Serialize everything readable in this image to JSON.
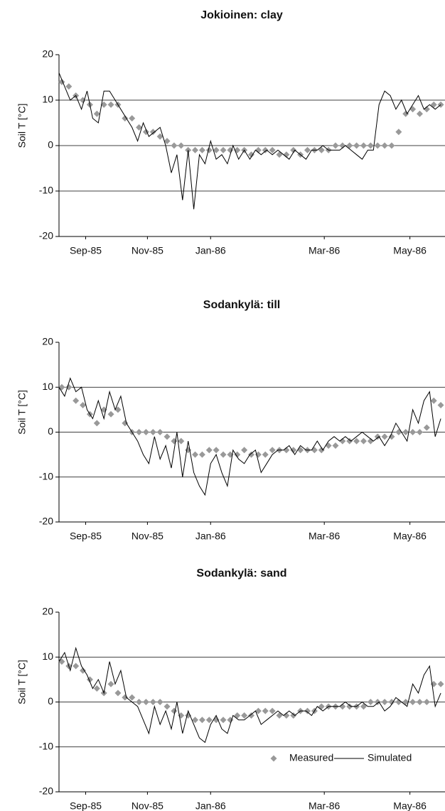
{
  "chart_data": [
    {
      "type": "line",
      "title": "Jokioinen: clay",
      "y_label": "Soil T [°C]",
      "xlim": [
        0,
        275
      ],
      "ylim": [
        -20,
        20
      ],
      "yticks": [
        -20,
        -10,
        0,
        10,
        20
      ],
      "xticks": [
        {
          "value": 19,
          "label": "Sep-85"
        },
        {
          "value": 63,
          "label": "Nov-85"
        },
        {
          "value": 108,
          "label": "Jan-86"
        },
        {
          "value": 189,
          "label": "Mar-86"
        },
        {
          "value": 250,
          "label": "May-86"
        }
      ],
      "grid": true,
      "series": [
        {
          "color": "#999999",
          "marker": "diamond",
          "x": [
            2,
            7,
            12,
            17,
            22,
            27,
            32,
            37,
            42,
            47,
            52,
            57,
            62,
            67,
            72,
            77,
            82,
            87,
            92,
            97,
            102,
            107,
            112,
            117,
            122,
            127,
            132,
            137,
            142,
            147,
            152,
            157,
            162,
            167,
            172,
            177,
            182,
            187,
            192,
            197,
            202,
            207,
            212,
            217,
            222,
            227,
            232,
            237,
            242,
            247,
            252,
            257,
            262,
            267,
            272
          ],
          "values": [
            14,
            13,
            11,
            10,
            9,
            7,
            9,
            9,
            9,
            6,
            6,
            4,
            3,
            3,
            2,
            1,
            0,
            0,
            -1,
            -1,
            -1,
            -1,
            -1,
            -1,
            -1,
            -1,
            -1,
            -2,
            -1,
            -1,
            -1,
            -2,
            -2,
            -1,
            -2,
            -1,
            -1,
            -1,
            -1,
            0,
            0,
            0,
            0,
            0,
            0,
            0,
            0,
            0,
            3,
            7,
            8,
            7,
            8,
            9,
            9
          ]
        },
        {
          "color": "#000000",
          "marker": "line",
          "x": [
            0,
            4,
            8,
            12,
            16,
            20,
            24,
            28,
            32,
            36,
            40,
            44,
            48,
            52,
            56,
            60,
            64,
            68,
            72,
            76,
            80,
            84,
            88,
            92,
            96,
            100,
            104,
            108,
            112,
            116,
            120,
            124,
            128,
            132,
            136,
            140,
            144,
            148,
            152,
            156,
            160,
            164,
            168,
            172,
            176,
            180,
            184,
            188,
            192,
            196,
            200,
            204,
            208,
            212,
            216,
            220,
            224,
            228,
            232,
            236,
            240,
            244,
            248,
            252,
            256,
            260,
            264,
            268,
            272
          ],
          "values": [
            16,
            13,
            10,
            11,
            8,
            12,
            6,
            5,
            12,
            12,
            10,
            8,
            6,
            4,
            1,
            5,
            2,
            3,
            4,
            0,
            -6,
            -2,
            -12,
            -1,
            -14,
            -2,
            -4,
            1,
            -3,
            -2,
            -4,
            0,
            -3,
            -1,
            -3,
            -1,
            -2,
            -1,
            -2,
            -1,
            -2,
            -3,
            -1,
            -2,
            -3,
            -1,
            -1,
            0,
            -1,
            -1,
            -1,
            0,
            -1,
            -2,
            -3,
            -1,
            -1,
            9,
            12,
            11,
            8,
            10,
            7,
            9,
            11,
            8,
            9,
            8,
            9
          ]
        }
      ]
    },
    {
      "type": "line",
      "title": "Sodankylä: till",
      "y_label": "Soil T [°C]",
      "xlim": [
        0,
        275
      ],
      "ylim": [
        -20,
        20
      ],
      "yticks": [
        -20,
        -10,
        0,
        10,
        20
      ],
      "xticks": [
        {
          "value": 19,
          "label": "Sep-85"
        },
        {
          "value": 63,
          "label": "Nov-85"
        },
        {
          "value": 108,
          "label": "Jan-86"
        },
        {
          "value": 189,
          "label": "Mar-86"
        },
        {
          "value": 250,
          "label": "May-86"
        }
      ],
      "grid": true,
      "series": [
        {
          "color": "#999999",
          "marker": "diamond",
          "x": [
            2,
            7,
            12,
            17,
            22,
            27,
            32,
            37,
            42,
            47,
            52,
            57,
            62,
            67,
            72,
            77,
            82,
            87,
            92,
            97,
            102,
            107,
            112,
            117,
            122,
            127,
            132,
            137,
            142,
            147,
            152,
            157,
            162,
            167,
            172,
            177,
            182,
            187,
            192,
            197,
            202,
            207,
            212,
            217,
            222,
            227,
            232,
            237,
            242,
            247,
            252,
            257,
            262,
            267,
            272
          ],
          "values": [
            10,
            10,
            7,
            6,
            4,
            2,
            5,
            4,
            5,
            2,
            0,
            0,
            0,
            0,
            0,
            -1,
            -2,
            -2,
            -4,
            -5,
            -5,
            -4,
            -4,
            -5,
            -5,
            -5,
            -4,
            -5,
            -5,
            -5,
            -4,
            -4,
            -4,
            -4,
            -4,
            -4,
            -4,
            -4,
            -3,
            -3,
            -2,
            -2,
            -2,
            -2,
            -2,
            -1,
            -1,
            -1,
            0,
            0,
            0,
            0,
            1,
            7,
            6
          ]
        },
        {
          "color": "#000000",
          "marker": "line",
          "x": [
            0,
            4,
            8,
            12,
            16,
            20,
            24,
            28,
            32,
            36,
            40,
            44,
            48,
            52,
            56,
            60,
            64,
            68,
            72,
            76,
            80,
            84,
            88,
            92,
            96,
            100,
            104,
            108,
            112,
            116,
            120,
            124,
            128,
            132,
            136,
            140,
            144,
            148,
            152,
            156,
            160,
            164,
            168,
            172,
            176,
            180,
            184,
            188,
            192,
            196,
            200,
            204,
            208,
            212,
            216,
            220,
            224,
            228,
            232,
            236,
            240,
            244,
            248,
            252,
            256,
            260,
            264,
            268,
            272
          ],
          "values": [
            10,
            8,
            12,
            9,
            10,
            5,
            3,
            7,
            3,
            9,
            5,
            8,
            2,
            0,
            -2,
            -5,
            -7,
            -1,
            -6,
            -3,
            -8,
            0,
            -10,
            -2,
            -9,
            -12,
            -14,
            -7,
            -5,
            -9,
            -12,
            -4,
            -6,
            -7,
            -5,
            -4,
            -9,
            -7,
            -5,
            -4,
            -4,
            -3,
            -5,
            -3,
            -4,
            -4,
            -2,
            -4,
            -2,
            -1,
            -2,
            -1,
            -2,
            -1,
            0,
            -1,
            -2,
            -1,
            -3,
            -1,
            2,
            0,
            -2,
            5,
            2,
            7,
            9,
            -1,
            3
          ]
        }
      ]
    },
    {
      "type": "line",
      "title": "Sodankylä: sand",
      "y_label": "Soil T [°C]",
      "xlim": [
        0,
        275
      ],
      "ylim": [
        -20,
        20
      ],
      "yticks": [
        -20,
        -10,
        0,
        10,
        20
      ],
      "xticks": [
        {
          "value": 19,
          "label": "Sep-85"
        },
        {
          "value": 63,
          "label": "Nov-85"
        },
        {
          "value": 108,
          "label": "Jan-86"
        },
        {
          "value": 189,
          "label": "Mar-86"
        },
        {
          "value": 250,
          "label": "May-86"
        }
      ],
      "grid": true,
      "legend": "lower right",
      "series": [
        {
          "name": "Measured",
          "color": "#999999",
          "marker": "diamond",
          "x": [
            2,
            7,
            12,
            17,
            22,
            27,
            32,
            37,
            42,
            47,
            52,
            57,
            62,
            67,
            72,
            77,
            82,
            87,
            92,
            97,
            102,
            107,
            112,
            117,
            122,
            127,
            132,
            137,
            142,
            147,
            152,
            157,
            162,
            167,
            172,
            177,
            182,
            187,
            192,
            197,
            202,
            207,
            212,
            217,
            222,
            227,
            232,
            237,
            242,
            247,
            252,
            257,
            262,
            267,
            272
          ],
          "values": [
            9,
            8,
            8,
            7,
            5,
            3,
            2,
            4,
            2,
            1,
            1,
            0,
            0,
            0,
            0,
            -1,
            -2,
            -3,
            -3,
            -4,
            -4,
            -4,
            -4,
            -4,
            -4,
            -3,
            -3,
            -3,
            -2,
            -2,
            -2,
            -3,
            -3,
            -3,
            -2,
            -2,
            -2,
            -1,
            -1,
            -1,
            -1,
            -1,
            -1,
            -1,
            0,
            0,
            0,
            0,
            0,
            0,
            0,
            0,
            0,
            4,
            4
          ]
        },
        {
          "name": "Simulated",
          "color": "#000000",
          "marker": "line",
          "x": [
            0,
            4,
            8,
            12,
            16,
            20,
            24,
            28,
            32,
            36,
            40,
            44,
            48,
            52,
            56,
            60,
            64,
            68,
            72,
            76,
            80,
            84,
            88,
            92,
            96,
            100,
            104,
            108,
            112,
            116,
            120,
            124,
            128,
            132,
            136,
            140,
            144,
            148,
            152,
            156,
            160,
            164,
            168,
            172,
            176,
            180,
            184,
            188,
            192,
            196,
            200,
            204,
            208,
            212,
            216,
            220,
            224,
            228,
            232,
            236,
            240,
            244,
            248,
            252,
            256,
            260,
            264,
            268,
            272
          ],
          "values": [
            9,
            11,
            7,
            12,
            8,
            6,
            3,
            5,
            2,
            9,
            4,
            7,
            1,
            0,
            -1,
            -4,
            -7,
            -1,
            -5,
            -2,
            -6,
            0,
            -7,
            -2,
            -5,
            -8,
            -9,
            -5,
            -3,
            -6,
            -7,
            -3,
            -4,
            -4,
            -3,
            -2,
            -5,
            -4,
            -3,
            -2,
            -3,
            -2,
            -3,
            -2,
            -2,
            -3,
            -1,
            -2,
            -1,
            -1,
            -1,
            0,
            -1,
            -1,
            0,
            -1,
            -1,
            0,
            -2,
            -1,
            1,
            0,
            -1,
            4,
            2,
            6,
            8,
            -1,
            2
          ]
        }
      ]
    }
  ]
}
